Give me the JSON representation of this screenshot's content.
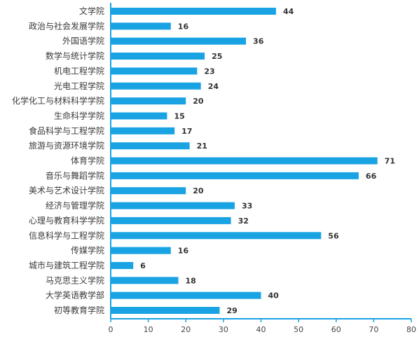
{
  "chart_data": {
    "type": "bar",
    "orientation": "horizontal",
    "title": "",
    "xlabel": "",
    "ylabel": "",
    "categories": [
      "文学院",
      "政治与社会发展学院",
      "外国语学院",
      "数学与统计学院",
      "机电工程学院",
      "光电工程学院",
      "化学化工与材料科学学院",
      "生命科学学院",
      "食品科学与工程学院",
      "旅游与资源环境学院",
      "体育学院",
      "音乐与舞蹈学院",
      "美术与艺术设计学院",
      "经济与管理学院",
      "心理与教育科学学院",
      "信息科学与工程学院",
      "传媒学院",
      "城市与建筑工程学院",
      "马克思主义学院",
      "大学英语教学部",
      "初等教育学院"
    ],
    "values": [
      44,
      16,
      36,
      25,
      23,
      24,
      20,
      15,
      17,
      21,
      71,
      66,
      20,
      33,
      32,
      56,
      16,
      6,
      18,
      40,
      29
    ],
    "xlim": [
      0,
      80
    ],
    "xticks": [
      0,
      10,
      20,
      30,
      40,
      50,
      60,
      70,
      80
    ],
    "grid": false,
    "legend": "none",
    "colors": {
      "bar": "#1aa3e3",
      "axis": "#1aa3e3",
      "text": "#3a3a3a"
    }
  }
}
